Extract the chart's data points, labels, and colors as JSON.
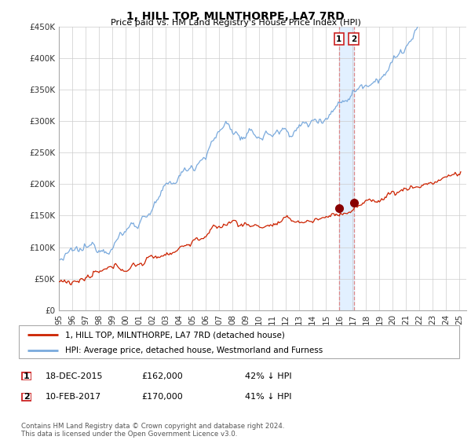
{
  "title": "1, HILL TOP, MILNTHORPE, LA7 7RD",
  "subtitle": "Price paid vs. HM Land Registry's House Price Index (HPI)",
  "ylim": [
    0,
    450000
  ],
  "yticks": [
    0,
    50000,
    100000,
    150000,
    200000,
    250000,
    300000,
    350000,
    400000,
    450000
  ],
  "ytick_labels": [
    "£0",
    "£50K",
    "£100K",
    "£150K",
    "£200K",
    "£250K",
    "£300K",
    "£350K",
    "£400K",
    "£450K"
  ],
  "hpi_color": "#7aaadd",
  "price_color": "#cc2200",
  "highlight_color": "#ddeeff",
  "vline_color": "#dd8888",
  "marker_color": "#880000",
  "legend_entry1": "1, HILL TOP, MILNTHORPE, LA7 7RD (detached house)",
  "legend_entry2": "HPI: Average price, detached house, Westmorland and Furness",
  "transaction1_date": "18-DEC-2015",
  "transaction1_price": "£162,000",
  "transaction1_hpi": "42% ↓ HPI",
  "transaction2_date": "10-FEB-2017",
  "transaction2_price": "£170,000",
  "transaction2_hpi": "41% ↓ HPI",
  "footer": "Contains HM Land Registry data © Crown copyright and database right 2024.\nThis data is licensed under the Open Government Licence v3.0.",
  "transaction1_x": 2015.97,
  "transaction2_x": 2017.08,
  "transaction1_y": 162000,
  "transaction2_y": 170000,
  "xlim_start": 1995,
  "xlim_end": 2025.5
}
